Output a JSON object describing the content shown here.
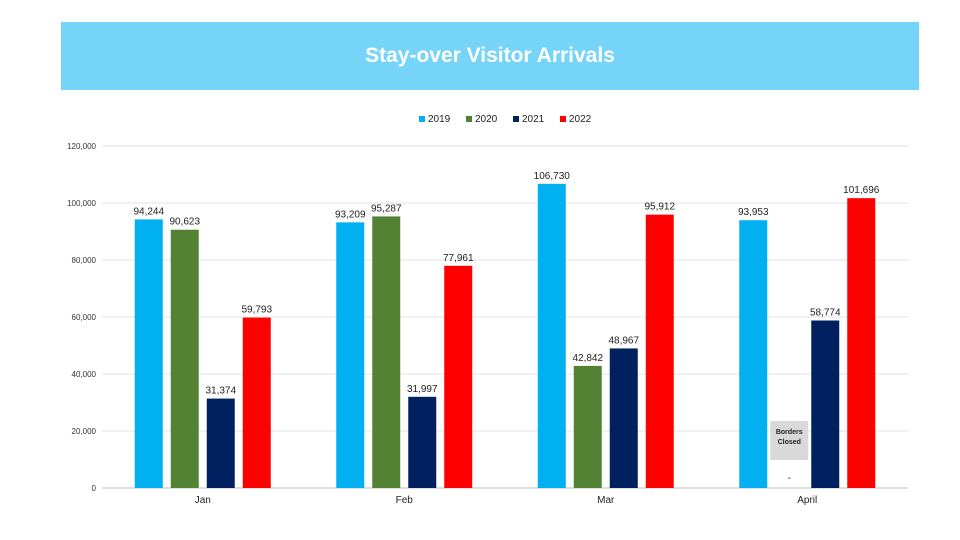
{
  "chart_data": {
    "type": "bar",
    "title": "Stay-over Visitor Arrivals",
    "categories": [
      "Jan",
      "Feb",
      "Mar",
      "April"
    ],
    "series": [
      {
        "name": "2019",
        "color": "#00B0F0",
        "values": [
          94244,
          93209,
          106730,
          93953
        ],
        "labels": [
          "94,244",
          "93,209",
          "106,730",
          "93,953"
        ]
      },
      {
        "name": "2020",
        "color": "#548235",
        "values": [
          90623,
          95287,
          42842,
          0
        ],
        "labels": [
          "90,623",
          "95,287",
          "42,842",
          "-"
        ]
      },
      {
        "name": "2021",
        "color": "#002060",
        "values": [
          31374,
          31997,
          48967,
          58774
        ],
        "labels": [
          "31,374",
          "31,997",
          "48,967",
          "58,774"
        ]
      },
      {
        "name": "2022",
        "color": "#FF0000",
        "values": [
          59793,
          77961,
          95912,
          101696
        ],
        "labels": [
          "59,793",
          "77,961",
          "95,912",
          "101,696"
        ]
      }
    ],
    "ylim": [
      0,
      120000
    ],
    "yticks": [
      0,
      20000,
      40000,
      60000,
      80000,
      100000,
      120000
    ],
    "ytick_labels": [
      "0",
      "20,000",
      "40,000",
      "60,000",
      "80,000",
      "100,000",
      "120,000"
    ],
    "grid": true,
    "legend_position": "top-center",
    "annotation": {
      "category": "April",
      "series": "2020",
      "lines": [
        "Borders",
        "Closed"
      ]
    }
  }
}
